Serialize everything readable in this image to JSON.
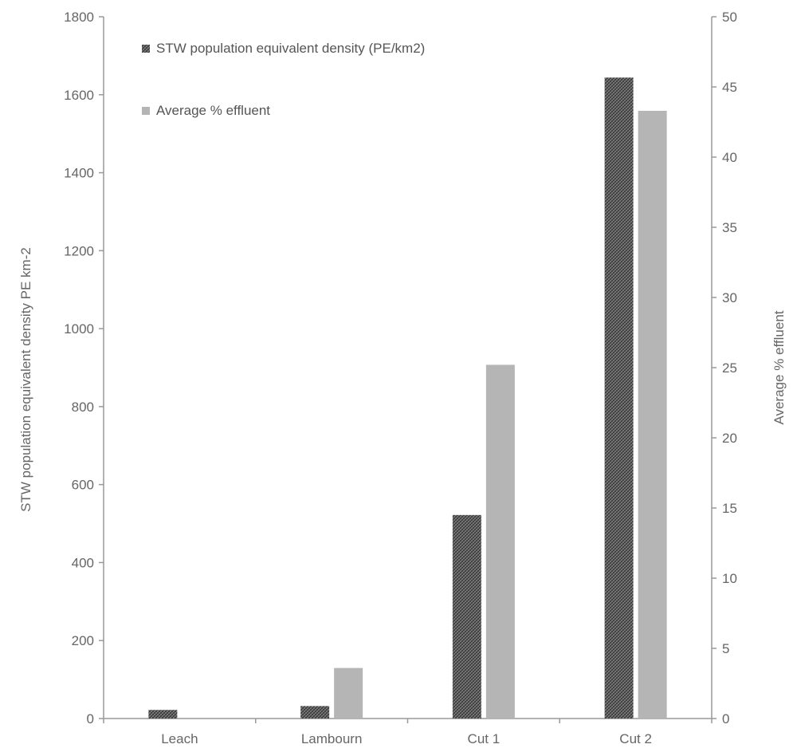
{
  "chart_data": {
    "type": "bar",
    "title": "",
    "categories": [
      "Leach",
      "Lambourn",
      "Cut 1",
      "Cut 2"
    ],
    "series": [
      {
        "name": "STW population equivalent density (PE/km2)",
        "axis": "left",
        "values": [
          22,
          32,
          522,
          1644
        ],
        "color": "#666666",
        "pattern": "crosshatch"
      },
      {
        "name": "Average % effluent",
        "axis": "right",
        "values": [
          0,
          3.6,
          25.2,
          43.3
        ],
        "color": "#b5b5b5",
        "pattern": "solid"
      }
    ],
    "y_left": {
      "label": "STW population equivalent density PE km-2",
      "min": 0,
      "max": 1800,
      "ticks": [
        "0",
        "200",
        "400",
        "600",
        "800",
        "1000",
        "1200",
        "1400",
        "1600",
        "1800"
      ]
    },
    "y_right": {
      "label": "Average % effluent",
      "min": 0,
      "max": 50,
      "ticks": [
        "0",
        "5",
        "10",
        "15",
        "20",
        "25",
        "30",
        "35",
        "40",
        "45",
        "50"
      ]
    },
    "grid": false,
    "legend_position": "top-left"
  }
}
